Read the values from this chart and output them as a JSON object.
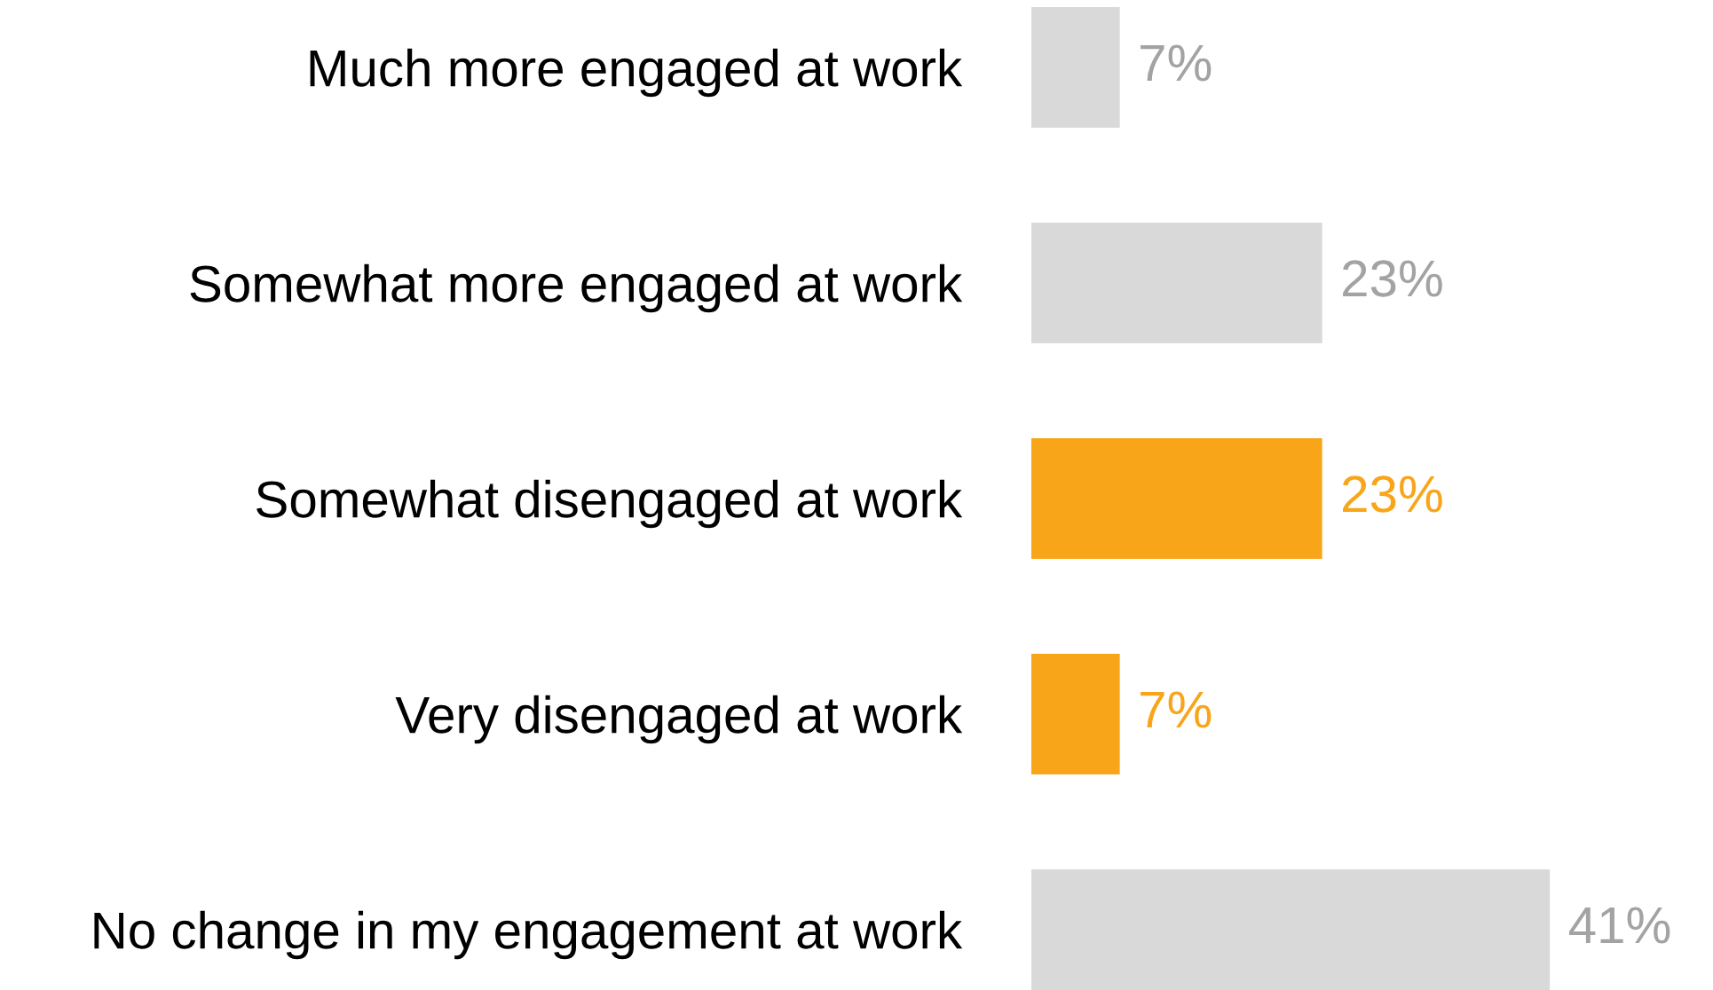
{
  "chart_data": {
    "type": "bar",
    "orientation": "horizontal",
    "categories": [
      "Much more engaged at work",
      "Somewhat more engaged at work",
      "Somewhat disengaged at work",
      "Very disengaged at work",
      "No change in my engagement at work"
    ],
    "values": [
      7,
      23,
      23,
      7,
      41
    ],
    "colors": [
      "#d9d9d9",
      "#d9d9d9",
      "#f9a51a",
      "#f9a51a",
      "#d9d9d9"
    ],
    "data_labels": true,
    "value_labels": [
      "7%",
      "23%",
      "23%",
      "7%",
      "41%"
    ]
  }
}
